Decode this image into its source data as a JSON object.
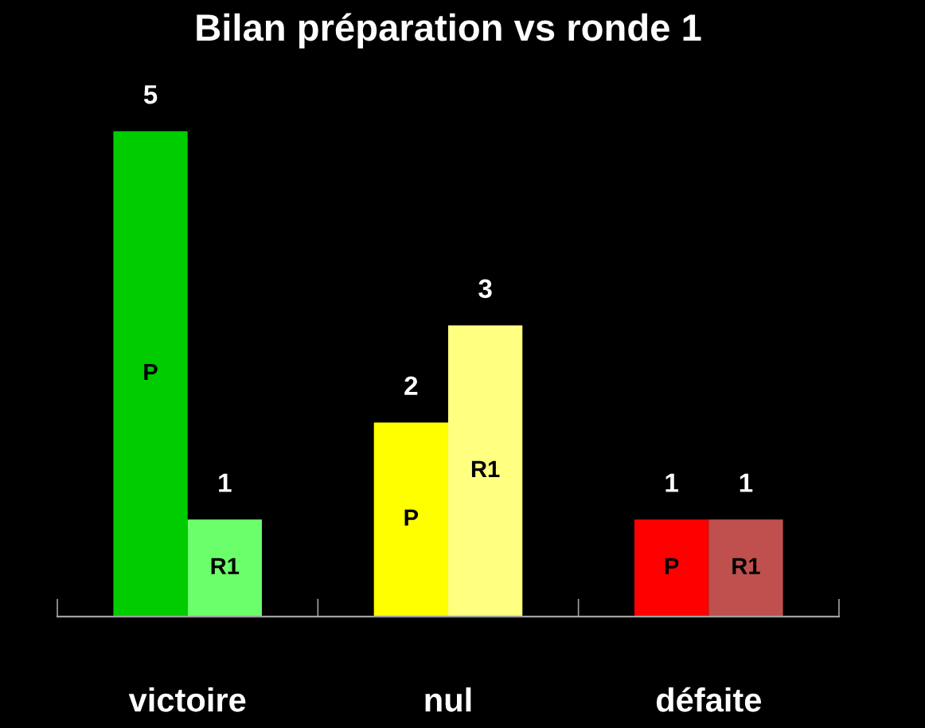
{
  "chart_data": {
    "type": "bar",
    "title": "Bilan préparation vs ronde 1",
    "categories": [
      "victoire",
      "nul",
      "défaite"
    ],
    "series": [
      {
        "name": "P",
        "colors": [
          "#00cc00",
          "#ffff00",
          "#ff0000"
        ],
        "values": [
          5,
          2,
          1
        ]
      },
      {
        "name": "R1",
        "colors": [
          "#6bff6b",
          "#ffff80",
          "#c0504d"
        ],
        "values": [
          1,
          3,
          1
        ]
      }
    ],
    "data_labels": true,
    "legend": false,
    "grid": false,
    "tick_labels": "x"
  }
}
